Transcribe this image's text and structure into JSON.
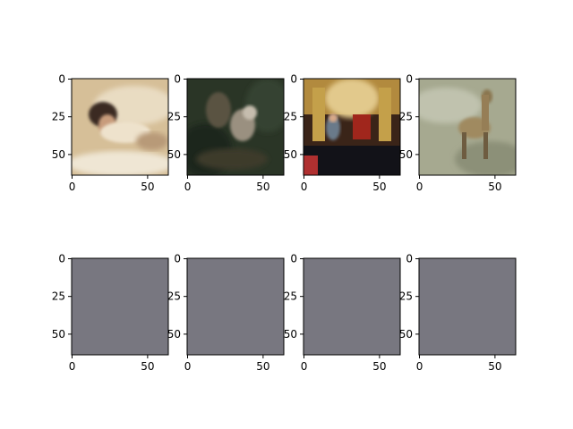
{
  "chart_data": [
    {
      "type": "image",
      "image": "photo of a woman lying in a bathtub, dark hair, light clothing",
      "palette": [
        "#dcc6a0",
        "#c9ad86",
        "#f0e6d2",
        "#3a2a22",
        "#b08a6a"
      ],
      "x_ticks": [
        "0",
        "50"
      ],
      "y_ticks": [
        "0",
        "25",
        "50"
      ],
      "xlim": [
        0,
        64
      ],
      "ylim": [
        64,
        0
      ]
    },
    {
      "type": "image",
      "image": "photo of a squirrel on dark green foliage",
      "palette": [
        "#2e3a2a",
        "#1f2a1d",
        "#4a4a3a",
        "#8a8070",
        "#c9c0b0"
      ],
      "x_ticks": [
        "0",
        "50"
      ],
      "y_ticks": [
        "0",
        "25",
        "50"
      ],
      "xlim": [
        0,
        64
      ],
      "ylim": [
        64,
        0
      ]
    },
    {
      "type": "image",
      "image": "photo of a man standing in an ornate church interior with red chairs",
      "palette": [
        "#3a2016",
        "#c9a24a",
        "#8b2a1e",
        "#e0c890",
        "#101015"
      ],
      "x_ticks": [
        "0",
        "50"
      ],
      "y_ticks": [
        "0",
        "25",
        "50"
      ],
      "xlim": [
        0,
        64
      ],
      "ylim": [
        64,
        0
      ]
    },
    {
      "type": "image",
      "image": "photo of a cheetah standing in grassland",
      "palette": [
        "#a8ab94",
        "#8f9580",
        "#c2c4b2",
        "#6a6050",
        "#3a3428"
      ],
      "x_ticks": [
        "0",
        "50"
      ],
      "y_ticks": [
        "0",
        "25",
        "50"
      ],
      "xlim": [
        0,
        64
      ],
      "ylim": [
        64,
        0
      ]
    },
    {
      "type": "image",
      "image": "uniform grey output",
      "fill": "#787780",
      "x_ticks": [
        "0",
        "50"
      ],
      "y_ticks": [
        "0",
        "25",
        "50"
      ],
      "xlim": [
        0,
        64
      ],
      "ylim": [
        64,
        0
      ]
    },
    {
      "type": "image",
      "image": "uniform grey output",
      "fill": "#787780",
      "x_ticks": [
        "0",
        "50"
      ],
      "y_ticks": [
        "0",
        "25",
        "50"
      ],
      "xlim": [
        0,
        64
      ],
      "ylim": [
        64,
        0
      ]
    },
    {
      "type": "image",
      "image": "uniform grey output",
      "fill": "#787780",
      "x_ticks": [
        "0",
        "50"
      ],
      "y_ticks": [
        "0",
        "25",
        "50"
      ],
      "xlim": [
        0,
        64
      ],
      "ylim": [
        64,
        0
      ]
    },
    {
      "type": "image",
      "image": "uniform grey output",
      "fill": "#787780",
      "x_ticks": [
        "0",
        "50"
      ],
      "y_ticks": [
        "0",
        "25",
        "50"
      ],
      "xlim": [
        0,
        64
      ],
      "ylim": [
        64,
        0
      ]
    }
  ]
}
